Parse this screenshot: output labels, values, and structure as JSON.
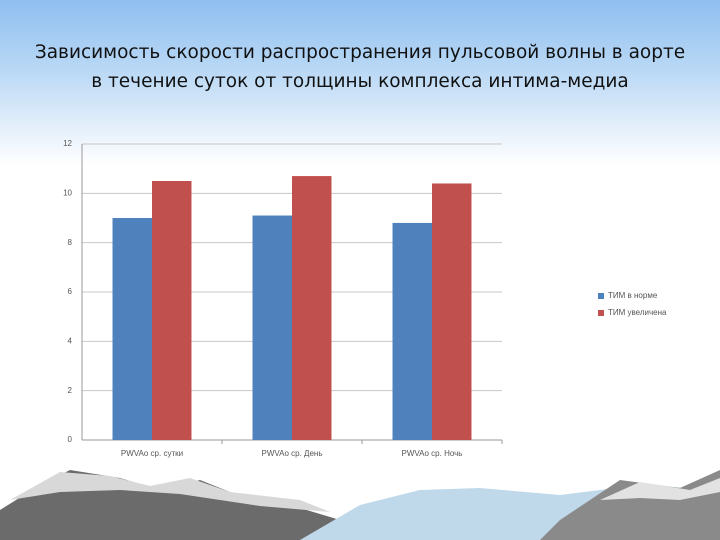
{
  "chart_data": {
    "type": "bar",
    "title": "Зависимость скорости распространения пульсовой волны в аорте в течение суток  от толщины комплекса интима-медиа",
    "categories": [
      "PWVAo ср. сутки",
      "PWVAo ср. День",
      "PWVAo ср. Ночь"
    ],
    "series": [
      {
        "name": "ТИМ в норме",
        "color": "#4f81bd",
        "values": [
          9.0,
          9.1,
          8.8
        ]
      },
      {
        "name": "ТИМ увеличена",
        "color": "#c0504d",
        "values": [
          10.5,
          10.7,
          10.4
        ]
      }
    ],
    "ylim": [
      0,
      12
    ],
    "yticks": [
      0,
      2,
      4,
      6,
      8,
      10,
      12
    ],
    "grid": true,
    "legend": "right"
  }
}
